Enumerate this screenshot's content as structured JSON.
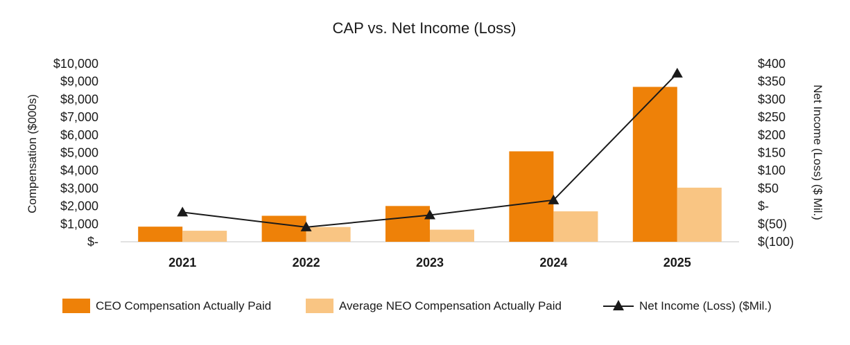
{
  "chart_data": {
    "type": "bar",
    "title": "CAP vs. Net Income (Loss)",
    "categories": [
      "2021",
      "2022",
      "2023",
      "2024",
      "2025"
    ],
    "series": [
      {
        "name": "CEO Compensation Actually Paid",
        "kind": "bar",
        "axis": "left",
        "color": "#ee8108",
        "values": [
          850,
          1460,
          2010,
          5080,
          8700
        ]
      },
      {
        "name": "Average NEO Compensation Actually Paid",
        "kind": "bar",
        "axis": "left",
        "color": "#f9c583",
        "values": [
          620,
          830,
          680,
          1710,
          3040
        ]
      },
      {
        "name": "Net Income (Loss) ($Mil.)",
        "kind": "line",
        "axis": "right",
        "color": "#1a1a1a",
        "marker": "triangle",
        "values": [
          -17,
          -59,
          -25,
          17,
          373
        ]
      }
    ],
    "ylabel": "Compensation ($000s)",
    "y2label": "Net Income (Loss) ($ Mil.)",
    "ylim": [
      0,
      10000
    ],
    "y2lim": [
      -100,
      400
    ],
    "yticks": [
      "$-",
      "$1,000",
      "$2,000",
      "$3,000",
      "$4,000",
      "$5,000",
      "$6,000",
      "$7,000",
      "$8,000",
      "$9,000",
      "$10,000"
    ],
    "y2ticks": [
      "$(100)",
      "$(50)",
      "$-",
      "$50",
      "$100",
      "$150",
      "$200",
      "$250",
      "$300",
      "$350",
      "$400"
    ],
    "legend_position": "bottom",
    "grid": false
  }
}
